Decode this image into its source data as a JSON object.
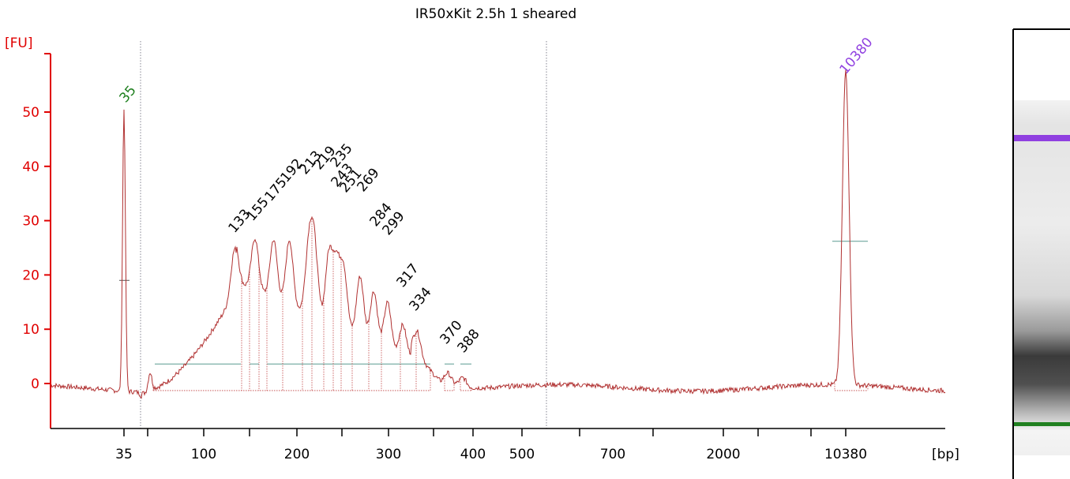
{
  "chart_data": {
    "type": "line",
    "title": "IR50xKit 2.5h 1 sheared",
    "y_unit_label": "[FU]",
    "x_unit_label": "[bp]",
    "ylim": [
      -8,
      58
    ],
    "y_ticks": [
      0,
      10,
      20,
      30,
      40,
      50
    ],
    "x_tick_labels": [
      "35",
      "100",
      "200",
      "300",
      "400",
      "500",
      "700",
      "2000",
      "10380"
    ],
    "colors": {
      "axis": "#e00000",
      "trace": "#b03030",
      "marker_low": "#208020",
      "marker_high": "#9040e0",
      "baseline": "#5a9a90"
    },
    "markers": [
      {
        "label": "35",
        "x_bp": 35,
        "fu": 50,
        "color": "#208020"
      },
      {
        "label": "10380",
        "x_bp": 10380,
        "fu": 56,
        "color": "#9040e0"
      }
    ],
    "peaks": [
      {
        "label": "133",
        "x_bp": 133,
        "fu": 26
      },
      {
        "label": "155",
        "x_bp": 155,
        "fu": 30
      },
      {
        "label": "175",
        "x_bp": 175,
        "fu": 34
      },
      {
        "label": "192",
        "x_bp": 192,
        "fu": 38
      },
      {
        "label": "213",
        "x_bp": 213,
        "fu": 37
      },
      {
        "label": "219",
        "x_bp": 219,
        "fu": 40
      },
      {
        "label": "235",
        "x_bp": 235,
        "fu": 39
      },
      {
        "label": "243",
        "x_bp": 243,
        "fu": 35
      },
      {
        "label": "251",
        "x_bp": 251,
        "fu": 35
      },
      {
        "label": "269",
        "x_bp": 269,
        "fu": 35
      },
      {
        "label": "284",
        "x_bp": 284,
        "fu": 30
      },
      {
        "label": "299",
        "x_bp": 299,
        "fu": 27
      },
      {
        "label": "317",
        "x_bp": 317,
        "fu": 18
      },
      {
        "label": "334",
        "x_bp": 334,
        "fu": 14
      },
      {
        "label": "370",
        "x_bp": 370,
        "fu": 6
      },
      {
        "label": "388",
        "x_bp": 388,
        "fu": 5
      }
    ]
  }
}
